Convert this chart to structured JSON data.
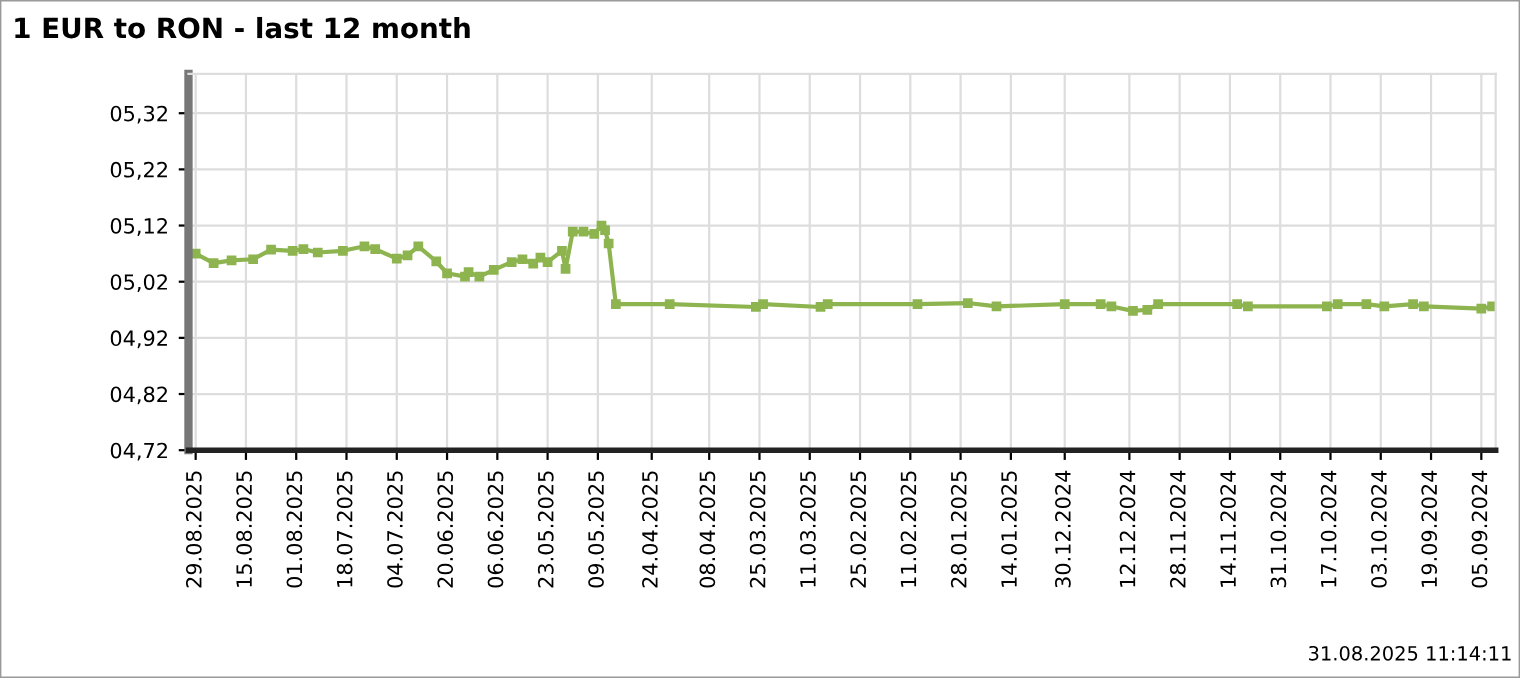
{
  "chart_data": {
    "type": "line",
    "title": "1 EUR to RON - last 12 month",
    "annotations": [
      "31.08.2025 11:14:11"
    ],
    "marker": "square",
    "line_style": "solid",
    "grid": true,
    "xlim": [
      "2025-08-31",
      "2024-09-01"
    ],
    "ylim": [
      4.72,
      5.39
    ],
    "yticks": [
      {
        "value": 4.72,
        "label": "04,72"
      },
      {
        "value": 4.82,
        "label": "04,82"
      },
      {
        "value": 4.92,
        "label": "04,92"
      },
      {
        "value": 5.02,
        "label": "05,02"
      },
      {
        "value": 5.12,
        "label": "05,12"
      },
      {
        "value": 5.22,
        "label": "05,22"
      },
      {
        "value": 5.32,
        "label": "05,32"
      }
    ],
    "xticks": [
      {
        "value": "2025-08-29",
        "label": "29.08.2025"
      },
      {
        "value": "2025-08-15",
        "label": "15.08.2025"
      },
      {
        "value": "2025-08-01",
        "label": "01.08.2025"
      },
      {
        "value": "2025-07-18",
        "label": "18.07.2025"
      },
      {
        "value": "2025-07-04",
        "label": "04.07.2025"
      },
      {
        "value": "2025-06-20",
        "label": "20.06.2025"
      },
      {
        "value": "2025-06-06",
        "label": "06.06.2025"
      },
      {
        "value": "2025-05-23",
        "label": "23.05.2025"
      },
      {
        "value": "2025-05-09",
        "label": "09.05.2025"
      },
      {
        "value": "2025-04-24",
        "label": "24.04.2025"
      },
      {
        "value": "2025-04-08",
        "label": "08.04.2025"
      },
      {
        "value": "2025-03-25",
        "label": "25.03.2025"
      },
      {
        "value": "2025-03-11",
        "label": "11.03.2025"
      },
      {
        "value": "2025-02-25",
        "label": "25.02.2025"
      },
      {
        "value": "2025-02-11",
        "label": "11.02.2025"
      },
      {
        "value": "2025-01-28",
        "label": "28.01.2025"
      },
      {
        "value": "2025-01-14",
        "label": "14.01.2025"
      },
      {
        "value": "2024-12-30",
        "label": "30.12.2024"
      },
      {
        "value": "2024-12-12",
        "label": "12.12.2024"
      },
      {
        "value": "2024-11-28",
        "label": "28.11.2024"
      },
      {
        "value": "2024-11-14",
        "label": "14.11.2024"
      },
      {
        "value": "2024-10-31",
        "label": "31.10.2024"
      },
      {
        "value": "2024-10-17",
        "label": "17.10.2024"
      },
      {
        "value": "2024-10-03",
        "label": "03.10.2024"
      },
      {
        "value": "2024-09-19",
        "label": "19.09.2024"
      },
      {
        "value": "2024-09-05",
        "label": "05.09.2024"
      }
    ],
    "x": [
      "2025-08-29",
      "2025-08-24",
      "2025-08-19",
      "2025-08-13",
      "2025-08-08",
      "2025-08-02",
      "2025-07-30",
      "2025-07-26",
      "2025-07-19",
      "2025-07-13",
      "2025-07-10",
      "2025-07-04",
      "2025-07-01",
      "2025-06-28",
      "2025-06-23",
      "2025-06-20",
      "2025-06-15",
      "2025-06-14",
      "2025-06-11",
      "2025-06-07",
      "2025-06-02",
      "2025-05-30",
      "2025-05-27",
      "2025-05-25",
      "2025-05-23",
      "2025-05-19",
      "2025-05-18",
      "2025-05-16",
      "2025-05-13",
      "2025-05-10",
      "2025-05-08",
      "2025-05-07",
      "2025-05-06",
      "2025-05-04",
      "2025-04-19",
      "2025-03-26",
      "2025-03-24",
      "2025-03-08",
      "2025-03-06",
      "2025-02-09",
      "2025-01-26",
      "2025-01-18",
      "2024-12-30",
      "2024-12-20",
      "2024-12-17",
      "2024-12-11",
      "2024-12-07",
      "2024-12-04",
      "2024-11-12",
      "2024-11-09",
      "2024-10-18",
      "2024-10-15",
      "2024-10-07",
      "2024-10-02",
      "2024-09-24",
      "2024-09-21",
      "2024-09-05",
      "2024-09-02"
    ],
    "series": [
      {
        "color": "#8db44f",
        "values": [
          5.07,
          5.053,
          5.058,
          5.06,
          5.077,
          5.075,
          5.078,
          5.072,
          5.075,
          5.083,
          5.078,
          5.061,
          5.067,
          5.083,
          5.056,
          5.035,
          5.029,
          5.037,
          5.029,
          5.041,
          5.055,
          5.06,
          5.052,
          5.063,
          5.055,
          5.075,
          5.043,
          5.109,
          5.109,
          5.105,
          5.12,
          5.112,
          5.088,
          4.98,
          4.98,
          4.975,
          4.98,
          4.975,
          4.98,
          4.98,
          4.982,
          4.976,
          4.98,
          4.98,
          4.976,
          4.968,
          4.97,
          4.98,
          4.98,
          4.976,
          4.976,
          4.98,
          4.98,
          4.976,
          4.98,
          4.976,
          4.972,
          4.976
        ]
      }
    ]
  }
}
